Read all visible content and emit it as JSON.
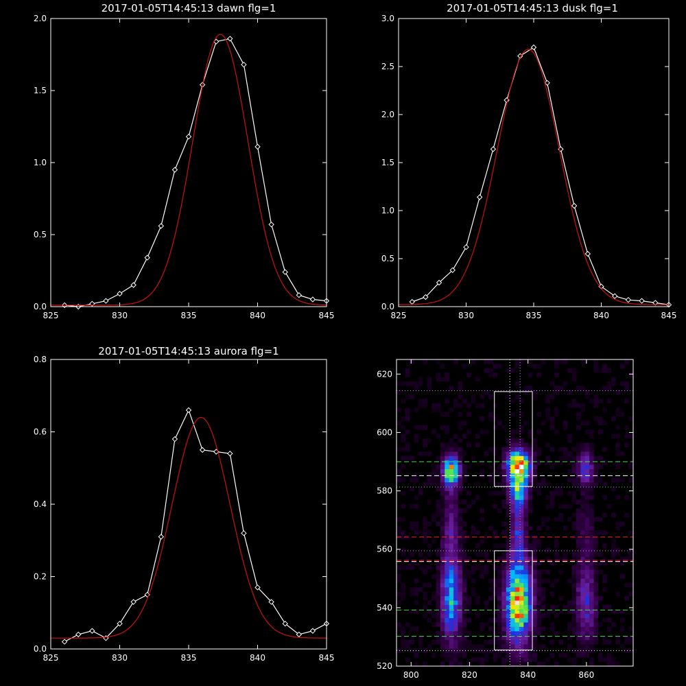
{
  "chart_data": [
    {
      "type": "line",
      "title": "2017-01-05T14:45:13 dawn flg=1",
      "xlim": [
        825,
        845
      ],
      "ylim": [
        0,
        2.0
      ],
      "xticks": [
        "825",
        "830",
        "835",
        "840",
        "845"
      ],
      "yticks": [
        "0.0",
        "0.5",
        "1.0",
        "1.5",
        "2.0"
      ],
      "series": [
        {
          "style": "observed",
          "color": "#ffffff",
          "marker": "diamond",
          "x": [
            826,
            827,
            828,
            829,
            830,
            831,
            832,
            833,
            834,
            835,
            836,
            837,
            838,
            839,
            840,
            841,
            842,
            843,
            844,
            845
          ],
          "y": [
            0.01,
            0.0,
            0.02,
            0.04,
            0.09,
            0.15,
            0.34,
            0.56,
            0.95,
            1.18,
            1.54,
            1.84,
            1.86,
            1.68,
            1.11,
            0.57,
            0.24,
            0.08,
            0.05,
            0.04
          ]
        },
        {
          "style": "fit",
          "color": "#d01010",
          "fit": {
            "center": 837.3,
            "amplitude": 1.88,
            "sigma": 2.0,
            "baseline": 0.01
          }
        }
      ]
    },
    {
      "type": "line",
      "title": "2017-01-05T14:45:13 dusk flg=1",
      "xlim": [
        825,
        845
      ],
      "ylim": [
        0,
        3.0
      ],
      "xticks": [
        "825",
        "830",
        "835",
        "840",
        "845"
      ],
      "yticks": [
        "0.0",
        "0.5",
        "1.0",
        "1.5",
        "2.0",
        "2.5",
        "3.0"
      ],
      "series": [
        {
          "style": "observed",
          "color": "#ffffff",
          "marker": "diamond",
          "x": [
            826,
            827,
            828,
            829,
            830,
            831,
            832,
            833,
            834,
            835,
            836,
            837,
            838,
            839,
            840,
            841,
            842,
            843,
            844,
            845
          ],
          "y": [
            0.05,
            0.1,
            0.25,
            0.38,
            0.62,
            1.14,
            1.64,
            2.15,
            2.61,
            2.7,
            2.33,
            1.64,
            1.05,
            0.55,
            0.21,
            0.11,
            0.07,
            0.06,
            0.04,
            0.02
          ]
        },
        {
          "style": "fit",
          "color": "#d01010",
          "fit": {
            "center": 834.6,
            "amplitude": 2.66,
            "sigma": 2.3,
            "baseline": 0.02
          }
        }
      ]
    },
    {
      "type": "line",
      "title": "2017-01-05T14:45:13 aurora flg=1",
      "xlim": [
        825,
        845
      ],
      "ylim": [
        0,
        0.8
      ],
      "xticks": [
        "825",
        "830",
        "835",
        "840",
        "845"
      ],
      "yticks": [
        "0.0",
        "0.2",
        "0.4",
        "0.6",
        "0.8"
      ],
      "series": [
        {
          "style": "observed",
          "color": "#ffffff",
          "marker": "diamond",
          "x": [
            826,
            827,
            828,
            829,
            830,
            831,
            832,
            833,
            834,
            835,
            836,
            837,
            838,
            839,
            840,
            841,
            842,
            843,
            844,
            845
          ],
          "y": [
            0.02,
            0.04,
            0.05,
            0.03,
            0.07,
            0.13,
            0.15,
            0.31,
            0.58,
            0.66,
            0.55,
            0.545,
            0.54,
            0.32,
            0.17,
            0.13,
            0.07,
            0.04,
            0.05,
            0.07
          ]
        },
        {
          "style": "fit",
          "color": "#d01010",
          "fit": {
            "center": 835.9,
            "amplitude": 0.61,
            "sigma": 2.1,
            "baseline": 0.03
          }
        }
      ]
    },
    {
      "type": "heatmap",
      "title": "",
      "xlim": [
        795,
        876
      ],
      "ylim": [
        520,
        625
      ],
      "xticks": [
        "800",
        "820",
        "840",
        "860"
      ],
      "yticks": [
        "520",
        "540",
        "560",
        "580",
        "600",
        "620"
      ],
      "colormap": [
        "#000000",
        "#3a0050",
        "#6a1e9e",
        "#1e30e0",
        "#00b8ff",
        "#40e060",
        "#f0f000",
        "#ff2000",
        "#ffffff"
      ],
      "blobs": [
        {
          "x": 836,
          "y": 588,
          "sx": 2.5,
          "sy": 3.5,
          "intensity": 1.0
        },
        {
          "x": 836,
          "y": 580,
          "sx": 2.0,
          "sy": 4.0,
          "intensity": 0.55
        },
        {
          "x": 836,
          "y": 541,
          "sx": 3.0,
          "sy": 9.0,
          "intensity": 0.85
        },
        {
          "x": 836,
          "y": 565,
          "sx": 1.6,
          "sy": 8.0,
          "intensity": 0.3
        },
        {
          "x": 813,
          "y": 586,
          "sx": 2.0,
          "sy": 3.5,
          "intensity": 0.72
        },
        {
          "x": 813,
          "y": 543,
          "sx": 2.2,
          "sy": 10.0,
          "intensity": 0.5
        },
        {
          "x": 813,
          "y": 568,
          "sx": 1.8,
          "sy": 9.0,
          "intensity": 0.18
        },
        {
          "x": 859,
          "y": 587,
          "sx": 2.0,
          "sy": 4.0,
          "intensity": 0.3
        },
        {
          "x": 859,
          "y": 541,
          "sx": 2.2,
          "sy": 9.0,
          "intensity": 0.28
        },
        {
          "x": 859,
          "y": 565,
          "sx": 1.8,
          "sy": 9.0,
          "intensity": 0.1
        }
      ],
      "boxes": [
        {
          "x": [
            828.5,
            841.5
          ],
          "y": [
            581.5,
            614
          ]
        },
        {
          "x": [
            828.5,
            841.5
          ],
          "y": [
            525.5,
            559.5
          ]
        }
      ],
      "hlines": [
        {
          "y": 614.3,
          "color": "#d070ff",
          "dash": "dotted"
        },
        {
          "y": 590,
          "color": "#40e040",
          "dash": "dashed"
        },
        {
          "y": 585.2,
          "color": "#ffffff",
          "dash": "dashed"
        },
        {
          "y": 581.3,
          "color": "#40e040",
          "dash": "dotted"
        },
        {
          "y": 564.2,
          "color": "#ff2020",
          "dash": "dashed"
        },
        {
          "y": 559.5,
          "color": "#d070ff",
          "dash": "dotted"
        },
        {
          "y": 556.2,
          "color": "#ff2020",
          "dash": "dashed"
        },
        {
          "y": 555.8,
          "color": "#ffffff",
          "dash": "dashed"
        },
        {
          "y": 539.2,
          "color": "#40e040",
          "dash": "dashed"
        },
        {
          "y": 530.2,
          "color": "#40e040",
          "dash": "dashed"
        },
        {
          "y": 525.3,
          "color": "#ffffff",
          "dash": "dotted"
        }
      ],
      "vlines": [
        {
          "x": 833.8,
          "color": "#ffffff",
          "dash": "dotted"
        },
        {
          "x": 837.3,
          "color": "#d070ff",
          "dash": "dotted"
        }
      ]
    }
  ]
}
